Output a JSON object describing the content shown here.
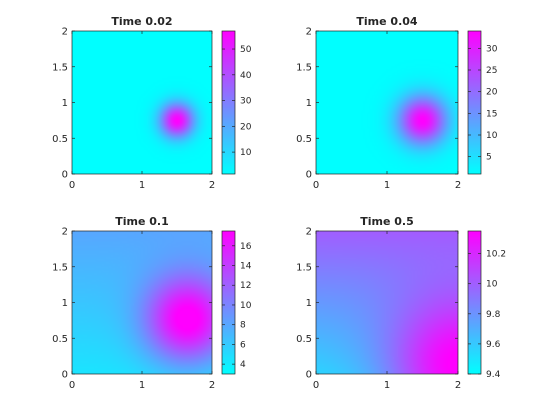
{
  "chart_data": [
    {
      "type": "heatmap",
      "title": "Time 0.02",
      "xlim": [
        0,
        2
      ],
      "ylim": [
        0,
        2
      ],
      "xticks": [
        "0",
        "1",
        "2"
      ],
      "yticks": [
        "0",
        "0.5",
        "1",
        "1.5",
        "2"
      ],
      "colormap": [
        "#00ffff",
        "#ff00ff"
      ],
      "colorbar": {
        "min": 1.5,
        "max": 57,
        "ticks": [
          10,
          20,
          30,
          40,
          50
        ],
        "tick_labels": [
          "10",
          "20",
          "30",
          "40",
          "50"
        ]
      },
      "field": {
        "base": 1.5,
        "peak": 55.5,
        "center": [
          1.5,
          0.75
        ],
        "sigma": 0.17,
        "gradient_x": 0,
        "gradient_y": 0
      }
    },
    {
      "type": "heatmap",
      "title": "Time 0.04",
      "xlim": [
        0,
        2
      ],
      "ylim": [
        0,
        2
      ],
      "xticks": [
        "0",
        "1",
        "2"
      ],
      "yticks": [
        "0",
        "0.5",
        "1",
        "1.5",
        "2"
      ],
      "colormap": [
        "#00ffff",
        "#ff00ff"
      ],
      "colorbar": {
        "min": 1,
        "max": 34,
        "ticks": [
          5,
          10,
          15,
          20,
          25,
          30
        ],
        "tick_labels": [
          "5",
          "10",
          "15",
          "20",
          "25",
          "30"
        ]
      },
      "field": {
        "base": 1.0,
        "peak": 33.0,
        "center": [
          1.5,
          0.75
        ],
        "sigma": 0.24,
        "gradient_x": 0,
        "gradient_y": 0
      }
    },
    {
      "type": "heatmap",
      "title": "Time 0.1",
      "xlim": [
        0,
        2
      ],
      "ylim": [
        0,
        2
      ],
      "xticks": [
        "0",
        "1",
        "2"
      ],
      "yticks": [
        "0",
        "0.5",
        "1",
        "1.5",
        "2"
      ],
      "colormap": [
        "#00ffff",
        "#ff00ff"
      ],
      "colorbar": {
        "min": 3,
        "max": 17.5,
        "ticks": [
          4,
          6,
          8,
          10,
          12,
          14,
          16
        ],
        "tick_labels": [
          "4",
          "6",
          "8",
          "10",
          "12",
          "14",
          "16"
        ]
      },
      "field": {
        "base": 4.5,
        "peak": 12.5,
        "center": [
          1.65,
          0.75
        ],
        "sigma": 0.42,
        "gradient_x": 0,
        "gradient_y": 3.5
      }
    },
    {
      "type": "heatmap",
      "title": "Time 0.5",
      "xlim": [
        0,
        2
      ],
      "ylim": [
        0,
        2
      ],
      "xticks": [
        "0",
        "1",
        "2"
      ],
      "yticks": [
        "0",
        "0.5",
        "1",
        "1.5",
        "2"
      ],
      "colormap": [
        "#00ffff",
        "#ff00ff"
      ],
      "colorbar": {
        "min": 9.4,
        "max": 10.35,
        "ticks": [
          9.4,
          9.6,
          9.8,
          10,
          10.2
        ],
        "tick_labels": [
          "9.4",
          "9.6",
          "9.8",
          "10",
          "10.2"
        ]
      },
      "field": {
        "base": 9.55,
        "peak": 0.8,
        "center": [
          2.0,
          0.0
        ],
        "sigma": 0.7,
        "gradient_x": 0,
        "gradient_y": 0.45
      }
    }
  ]
}
